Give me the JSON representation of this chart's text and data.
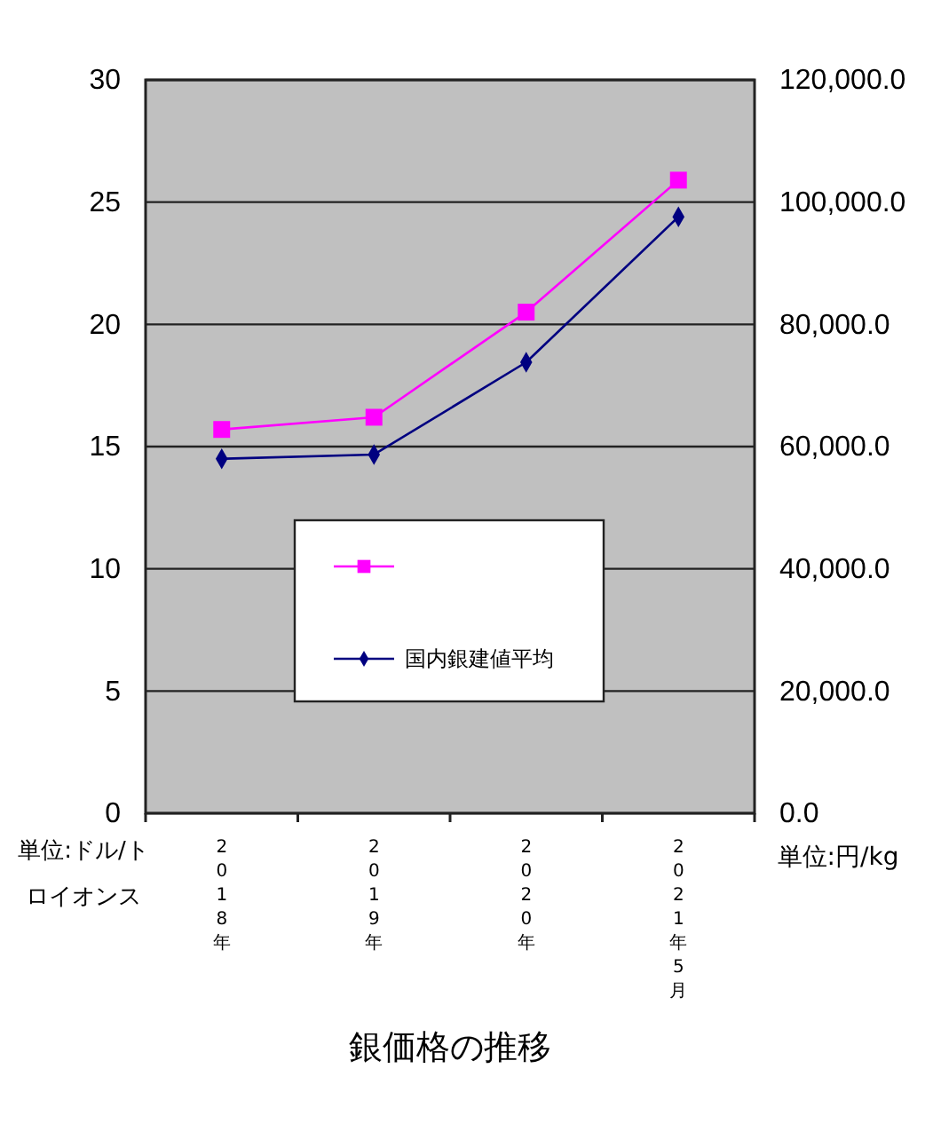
{
  "chart_data": {
    "type": "line",
    "title": "銀価格の推移",
    "ylabel": "単位:ドル/トロイオンス",
    "y2label": "単位:円/kg",
    "categories": [
      "2018年",
      "2019年",
      "2020年",
      "2021年5月"
    ],
    "series": [
      {
        "color": "#ff00ff",
        "marker": "square",
        "values": [
          15.7,
          16.2,
          20.5,
          25.9
        ]
      },
      {
        "name": "国内銀建値平均",
        "color": "#000080",
        "marker": "diamond",
        "axis": "y2",
        "values": [
          58000,
          58700,
          73800,
          97600
        ]
      }
    ],
    "ylim": [
      0,
      30
    ],
    "yticks": [
      0,
      5,
      10,
      15,
      20,
      25,
      30
    ],
    "y2lim": [
      0,
      120000
    ],
    "y2ticks": [
      {
        "value": 0,
        "label": "0.0"
      },
      {
        "value": 20000,
        "label": "20,000.0"
      },
      {
        "value": 40000,
        "label": "40,000.0"
      },
      {
        "value": 60000,
        "label": "60,000.0"
      },
      {
        "value": 80000,
        "label": "80,000.0"
      },
      {
        "value": 100000,
        "label": "100,000.0"
      },
      {
        "value": 120000,
        "label": "120,000.0"
      }
    ],
    "grid": "y",
    "legend": "bottom",
    "line_style": "solid"
  }
}
